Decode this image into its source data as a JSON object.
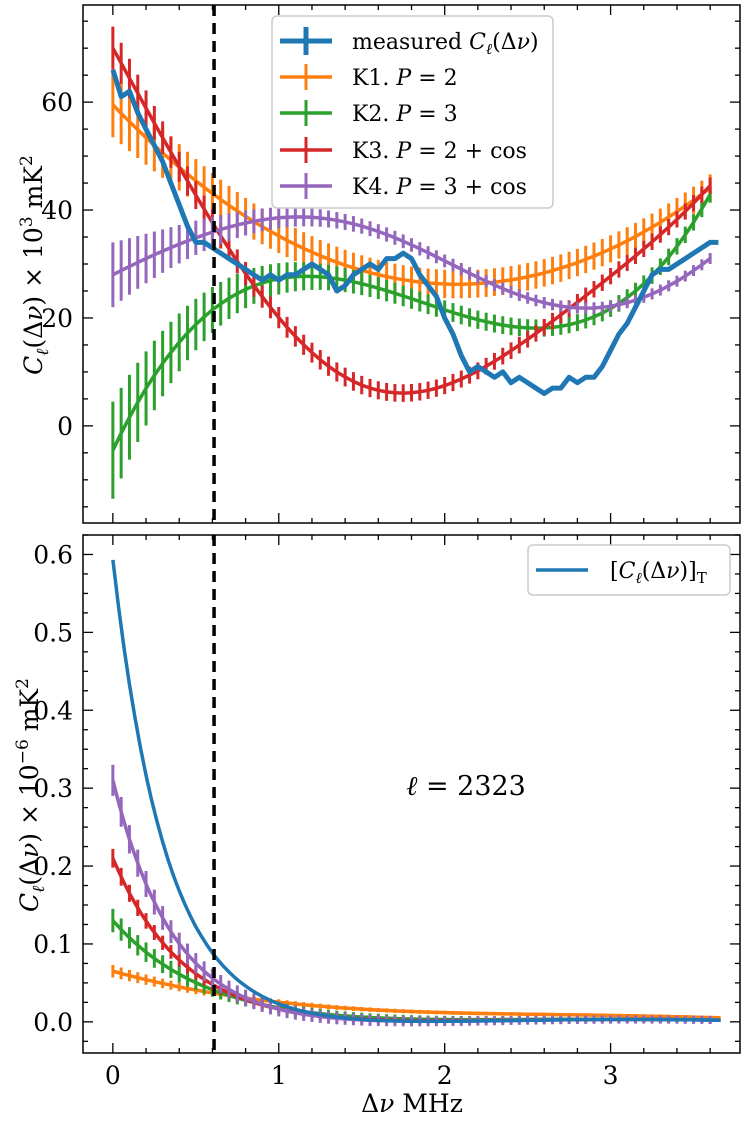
{
  "chart_data": [
    {
      "type": "line",
      "panel": "top",
      "ylabel": "C_ℓ(Δν) × 10³ mK²",
      "xlabel": "",
      "xlim": [
        -0.18,
        3.78
      ],
      "ylim": [
        -18,
        78
      ],
      "xticks": [
        0,
        1,
        2,
        3
      ],
      "yticks": [
        0,
        20,
        40,
        60
      ],
      "yticklabels": [
        "0",
        "20",
        "40",
        "60"
      ],
      "vline_x": 0.61,
      "legend_position": "top-center",
      "series": [
        {
          "name": "measured C_ℓ(Δν)",
          "color": "#1f77b4",
          "errorbars": false,
          "x": [
            0,
            0.05,
            0.1,
            0.15,
            0.2,
            0.25,
            0.3,
            0.35,
            0.4,
            0.45,
            0.5,
            0.55,
            0.6,
            0.65,
            0.7,
            0.75,
            0.8,
            0.85,
            0.9,
            0.95,
            1.0,
            1.05,
            1.1,
            1.15,
            1.2,
            1.25,
            1.3,
            1.35,
            1.4,
            1.45,
            1.5,
            1.55,
            1.6,
            1.65,
            1.7,
            1.75,
            1.8,
            1.85,
            1.9,
            1.95,
            2.0,
            2.05,
            2.1,
            2.15,
            2.2,
            2.25,
            2.3,
            2.35,
            2.4,
            2.45,
            2.5,
            2.55,
            2.6,
            2.65,
            2.7,
            2.75,
            2.8,
            2.85,
            2.9,
            2.95,
            3.0,
            3.05,
            3.1,
            3.15,
            3.2,
            3.25,
            3.3,
            3.35,
            3.4,
            3.45,
            3.5,
            3.55,
            3.6,
            3.65
          ],
          "y": [
            66,
            61,
            62,
            58,
            55,
            52,
            49,
            45,
            41,
            37,
            34,
            34,
            33,
            32,
            31,
            30,
            29,
            28,
            27,
            28,
            27,
            28,
            28,
            29,
            30,
            29,
            28,
            25,
            26,
            28,
            29,
            30,
            29,
            31,
            31,
            32,
            31,
            28,
            26,
            24,
            20,
            17,
            13,
            10,
            11,
            10,
            9,
            10,
            8,
            9,
            8,
            7,
            6,
            7,
            7,
            9,
            8,
            9,
            9,
            11,
            14,
            17,
            19,
            22,
            25,
            28,
            29,
            29,
            30,
            31,
            32,
            33,
            34,
            34
          ]
        },
        {
          "name": "K1.  P = 2",
          "color": "#ff7f0e",
          "coeffs": [
            59.5,
            -32.0,
            7.7,
            0.0
          ],
          "err": [
            6,
            2.5
          ]
        },
        {
          "name": "K2.  P = 3",
          "color": "#2ca02c",
          "coeffs": [
            -4.5,
            65.0,
            -40.5,
            7.25
          ],
          "err": [
            9,
            1.5
          ]
        },
        {
          "name": "K3.  P = 2 + cos",
          "color": "#d62728",
          "coeffs": [
            65.0,
            -56.0,
            14.0,
            0.0
          ],
          "cos": [
            5.0,
            2.2
          ],
          "err": [
            4,
            1.5
          ]
        },
        {
          "name": "K4.  P = 3 + cos",
          "color": "#9467bd",
          "coeffs": [
            31.5,
            16.0,
            -13.5,
            2.5
          ],
          "cos": [
            -3.5,
            2.2
          ],
          "err": [
            6,
            1.0
          ]
        }
      ]
    },
    {
      "type": "line",
      "panel": "bottom",
      "ylabel": "C_ℓ(Δν) × 10⁻⁶ mK²",
      "xlabel": "Δν MHz",
      "xlim": [
        -0.18,
        3.78
      ],
      "ylim": [
        -0.04,
        0.625
      ],
      "xticks": [
        0,
        1,
        2,
        3
      ],
      "xticklabels": [
        "0",
        "1",
        "2",
        "3"
      ],
      "yticks": [
        0.0,
        0.1,
        0.2,
        0.3,
        0.4,
        0.5,
        0.6
      ],
      "yticklabels": [
        "0.0",
        "0.1",
        "0.2",
        "0.3",
        "0.4",
        "0.5",
        "0.6"
      ],
      "vline_x": 0.61,
      "legend_position": "top-right",
      "annotation": "ℓ = 2323",
      "series": [
        {
          "name": "[C_ℓ(Δν)]_T",
          "color": "#1f77b4",
          "amp": 0.593,
          "scale": 0.32,
          "errorbars": false
        },
        {
          "color": "#ff7f0e",
          "amp": 0.065,
          "scale": 1.2,
          "err": 0.008
        },
        {
          "color": "#2ca02c",
          "amp": 0.13,
          "scale": 0.55,
          "err": 0.015
        },
        {
          "color": "#d62728",
          "amp": 0.21,
          "scale": 0.42,
          "err": 0.012
        },
        {
          "color": "#9467bd",
          "amp": 0.31,
          "scale": 0.36,
          "err": 0.02
        }
      ]
    }
  ]
}
